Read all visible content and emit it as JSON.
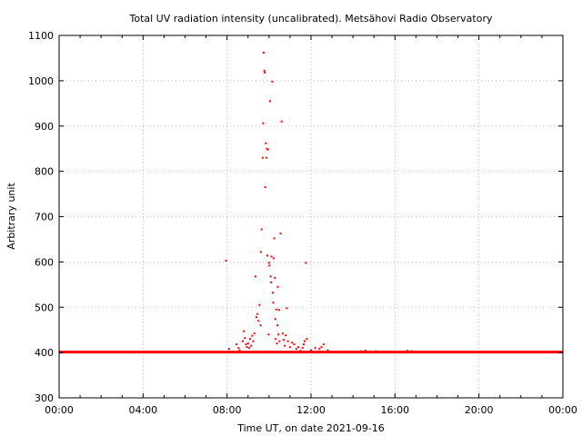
{
  "chart_data": {
    "type": "scatter",
    "title": "Total UV radiation intensity (uncalibrated). Metsähovi Radio Observatory",
    "xlabel": "Time UT, on date 2021-09-16",
    "ylabel": "Arbitrary unit",
    "xlim": [
      0,
      24
    ],
    "ylim": [
      300,
      1100
    ],
    "x_ticks": [
      0,
      4,
      8,
      12,
      16,
      20,
      24
    ],
    "x_tick_labels": [
      "00:00",
      "04:00",
      "08:00",
      "12:00",
      "16:00",
      "20:00",
      "00:00"
    ],
    "y_ticks": [
      300,
      400,
      500,
      600,
      700,
      800,
      900,
      1000,
      1100
    ],
    "y_tick_labels": [
      "300",
      "400",
      "500",
      "600",
      "700",
      "800",
      "900",
      "1000",
      "1100"
    ],
    "grid": true,
    "color": "#ff0000",
    "baseline": {
      "value": 401,
      "x_range": [
        0,
        24
      ]
    },
    "series": [
      {
        "x": [
          7.95,
          8.1,
          8.45,
          8.55,
          8.6,
          8.75,
          8.8,
          8.85,
          8.9,
          8.95,
          9.0,
          9.05,
          9.1,
          9.15,
          9.2,
          9.25,
          9.3,
          9.35,
          9.4,
          9.45,
          9.5,
          9.55,
          9.6,
          9.62,
          9.65,
          9.7,
          9.72,
          9.75,
          9.78,
          9.8,
          9.82,
          9.85,
          9.88,
          9.9,
          9.92,
          9.95,
          9.98,
          10.0,
          10.02,
          10.05,
          10.08,
          10.1,
          10.12,
          10.15,
          10.18,
          10.2,
          10.22,
          10.25,
          10.28,
          10.3,
          10.32,
          10.35,
          10.38,
          10.4,
          10.42,
          10.45,
          10.48,
          10.5,
          10.55,
          10.6,
          10.65,
          10.7,
          10.75,
          10.8,
          10.85,
          10.9,
          11.0,
          11.1,
          11.2,
          11.3,
          11.4,
          11.5,
          11.6,
          11.65,
          11.7,
          11.75,
          11.8,
          12.0,
          12.2,
          12.4,
          12.5,
          12.6,
          12.8,
          14.4,
          14.6,
          15.1,
          15.3,
          15.5,
          16.6,
          16.8
        ],
        "y": [
          603,
          408,
          418,
          410,
          405,
          425,
          447,
          432,
          418,
          412,
          420,
          410,
          430,
          415,
          437,
          425,
          442,
          568,
          478,
          485,
          470,
          505,
          460,
          622,
          672,
          830,
          906,
          1062,
          1022,
          1018,
          765,
          862,
          830,
          850,
          614,
          848,
          440,
          598,
          592,
          955,
          568,
          555,
          612,
          998,
          532,
          510,
          608,
          652,
          565,
          474,
          430,
          495,
          420,
          460,
          545,
          440,
          494,
          425,
          663,
          910,
          442,
          428,
          415,
          438,
          498,
          425,
          412,
          422,
          418,
          408,
          412,
          404,
          410,
          418,
          425,
          598,
          430,
          405,
          410,
          408,
          412,
          418,
          405,
          403,
          404,
          403,
          402,
          402,
          404,
          403
        ]
      }
    ]
  }
}
